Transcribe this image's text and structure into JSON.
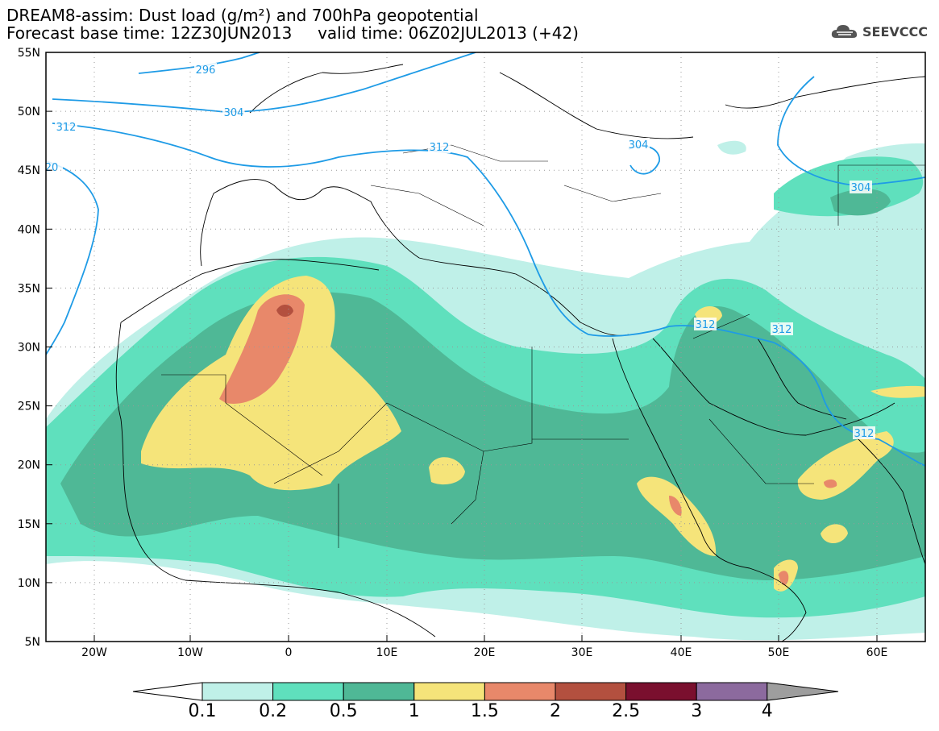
{
  "title": {
    "line1": "DREAM8-assim: Dust load (g/m²) and 700hPa geopotential",
    "line2_base": "Forecast base time: 12Z30JUN2013",
    "line2_valid": "valid time: 06Z02JUL2013 (+42)"
  },
  "logo": {
    "text": "SEEVCCC",
    "icon": "cloud-icon"
  },
  "axes": {
    "lon_labels": [
      "20W",
      "10W",
      "0",
      "10E",
      "20E",
      "30E",
      "40E",
      "50E",
      "60E"
    ],
    "lat_labels": [
      "55N",
      "50N",
      "45N",
      "40N",
      "35N",
      "30N",
      "25N",
      "20N",
      "15N",
      "10N",
      "5N"
    ]
  },
  "contour_labels": [
    "296",
    "304",
    "312",
    "20",
    "312",
    "304",
    "304",
    "312",
    "312",
    "312"
  ],
  "legend": {
    "levels": [
      "0.1",
      "0.2",
      "0.5",
      "1",
      "1.5",
      "2",
      "2.5",
      "3",
      "4"
    ],
    "colors": [
      "#bff0e8",
      "#5fe0bd",
      "#4fb896",
      "#f5e47a",
      "#e8886a",
      "#b3503f",
      "#7a0f2e",
      "#8c6a9e",
      "#9e9e9e"
    ]
  },
  "colors": {
    "lvl1": "#bff0e8",
    "lvl2": "#5fe0bd",
    "lvl3": "#4fb896",
    "lvl4": "#f5e47a",
    "lvl5": "#e8886a",
    "lvl6": "#b3503f",
    "contour": "#1e9be6"
  }
}
